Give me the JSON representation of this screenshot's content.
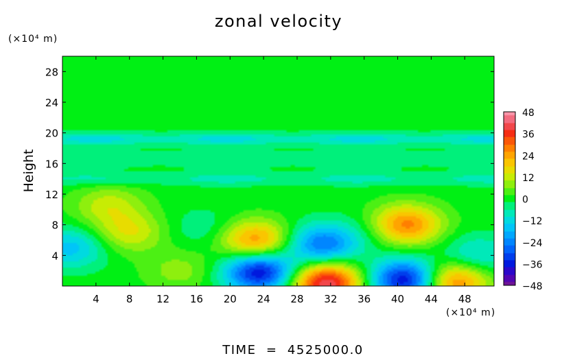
{
  "chart_data": {
    "type": "heatmap",
    "title": "zonal velocity",
    "ylabel": "Height",
    "x_unit_label": "(×10⁴ m)",
    "y_unit_label": "(×10⁴ m)",
    "xlim": [
      0,
      51.5
    ],
    "ylim": [
      0,
      30
    ],
    "x_ticks": [
      "4",
      "8",
      "12",
      "16",
      "20",
      "24",
      "28",
      "32",
      "36",
      "40",
      "44",
      "48"
    ],
    "y_ticks": [
      "4",
      "8",
      "12",
      "16",
      "20",
      "24",
      "28"
    ],
    "colorbar": {
      "range": [
        -48,
        48
      ],
      "ticks": [
        "48",
        "36",
        "24",
        "12",
        "0",
        "−12",
        "−24",
        "−36",
        "−48"
      ]
    },
    "footer": "TIME  =  4525000.0",
    "features": [
      {
        "x": 31.5,
        "y": 0.4,
        "value": 42
      },
      {
        "x": 41.0,
        "y": 8.0,
        "value": 28
      },
      {
        "x": 23.0,
        "y": 6.0,
        "value": 26
      },
      {
        "x": 8.0,
        "y": 7.0,
        "value": 14
      },
      {
        "x": 5.5,
        "y": 10.5,
        "value": 12
      },
      {
        "x": 46.5,
        "y": 0.6,
        "value": 30
      },
      {
        "x": 14.0,
        "y": 2.0,
        "value": 8
      },
      {
        "x": 31.0,
        "y": 5.5,
        "value": -26
      },
      {
        "x": 41.0,
        "y": 0.8,
        "value": -40
      },
      {
        "x": 23.5,
        "y": 1.8,
        "value": -38
      },
      {
        "x": 17.0,
        "y": 7.5,
        "value": -6
      },
      {
        "x": 36.5,
        "y": 7.0,
        "value": -4
      },
      {
        "x": 1.0,
        "y": 5.0,
        "value": -16
      },
      {
        "x": 49.5,
        "y": 4.0,
        "value": -12
      }
    ],
    "bands": [
      {
        "y": 19.2,
        "value": -12
      },
      {
        "y": 17.0,
        "value": -4
      },
      {
        "y": 14.0,
        "value": -8
      },
      {
        "y": 16.0,
        "value": -3
      }
    ]
  }
}
